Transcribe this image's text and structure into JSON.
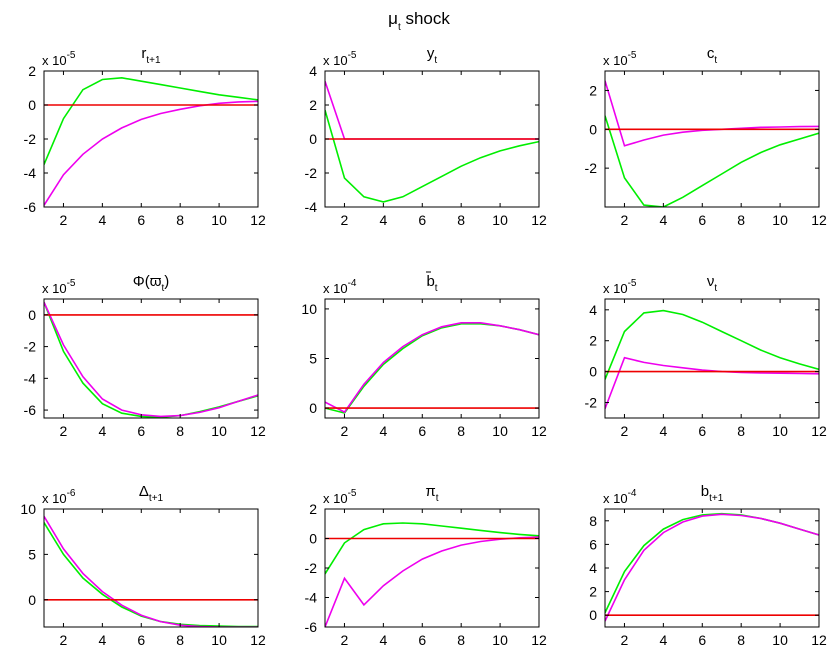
{
  "figure": {
    "title_main": "μ",
    "title_sub": "t",
    "title_rest": " shock"
  },
  "colors": {
    "series1": "#00ee00",
    "series2": "#ee00ee",
    "zero_line": "#ee0000",
    "axes": "#000000"
  },
  "chart_data": [
    {
      "type": "line",
      "title": "r",
      "title_sub": "t+1",
      "exponent_label": "x 10",
      "exponent": "-5",
      "x": [
        1,
        2,
        3,
        4,
        5,
        6,
        7,
        8,
        9,
        10,
        11,
        12
      ],
      "xlim": [
        1,
        12
      ],
      "xticks": [
        2,
        4,
        6,
        8,
        10,
        12
      ],
      "ylim": [
        -6,
        2
      ],
      "yticks": [
        -6,
        -4,
        -2,
        0,
        2
      ],
      "series": [
        {
          "color": "#00ee00",
          "values": [
            -3.5,
            -0.8,
            0.9,
            1.5,
            1.6,
            1.4,
            1.2,
            1.0,
            0.8,
            0.6,
            0.45,
            0.3
          ]
        },
        {
          "color": "#ee00ee",
          "values": [
            -5.9,
            -4.1,
            -2.9,
            -2.0,
            -1.35,
            -0.85,
            -0.5,
            -0.25,
            -0.05,
            0.1,
            0.18,
            0.22
          ]
        },
        {
          "color": "#ee0000",
          "values": [
            0,
            0,
            0,
            0,
            0,
            0,
            0,
            0,
            0,
            0,
            0,
            0
          ]
        }
      ]
    },
    {
      "type": "line",
      "title": "y",
      "title_sub": "t",
      "exponent_label": "x 10",
      "exponent": "-5",
      "x": [
        1,
        2,
        3,
        4,
        5,
        6,
        7,
        8,
        9,
        10,
        11,
        12
      ],
      "xlim": [
        1,
        12
      ],
      "xticks": [
        2,
        4,
        6,
        8,
        10,
        12
      ],
      "ylim": [
        -4,
        4
      ],
      "yticks": [
        -4,
        -2,
        0,
        2,
        4
      ],
      "series": [
        {
          "color": "#00ee00",
          "values": [
            1.7,
            -2.3,
            -3.4,
            -3.7,
            -3.4,
            -2.8,
            -2.2,
            -1.6,
            -1.1,
            -0.7,
            -0.4,
            -0.15
          ]
        },
        {
          "color": "#ee00ee",
          "values": [
            3.4,
            0,
            0,
            0,
            0,
            0,
            0,
            0,
            0,
            0,
            0,
            0
          ]
        },
        {
          "color": "#ee0000",
          "values": [
            0,
            0,
            0,
            0,
            0,
            0,
            0,
            0,
            0,
            0,
            0,
            0
          ]
        }
      ]
    },
    {
      "type": "line",
      "title": "c",
      "title_sub": "t",
      "exponent_label": "x 10",
      "exponent": "-5",
      "x": [
        1,
        2,
        3,
        4,
        5,
        6,
        7,
        8,
        9,
        10,
        11,
        12
      ],
      "xlim": [
        1,
        12
      ],
      "xticks": [
        2,
        4,
        6,
        8,
        10,
        12
      ],
      "ylim": [
        -4,
        3
      ],
      "yticks": [
        -2,
        0,
        2
      ],
      "series": [
        {
          "color": "#00ee00",
          "values": [
            0.7,
            -2.5,
            -3.9,
            -4.0,
            -3.5,
            -2.9,
            -2.3,
            -1.7,
            -1.2,
            -0.8,
            -0.5,
            -0.2
          ]
        },
        {
          "color": "#ee00ee",
          "values": [
            2.5,
            -0.85,
            -0.55,
            -0.3,
            -0.15,
            -0.05,
            0,
            0.05,
            0.1,
            0.12,
            0.14,
            0.15
          ]
        },
        {
          "color": "#ee0000",
          "values": [
            0,
            0,
            0,
            0,
            0,
            0,
            0,
            0,
            0,
            0,
            0,
            0
          ]
        }
      ]
    },
    {
      "type": "line",
      "title": "Φ(ϖ",
      "title_sub": "t",
      "title_after": ")",
      "exponent_label": "x 10",
      "exponent": "-5",
      "x": [
        1,
        2,
        3,
        4,
        5,
        6,
        7,
        8,
        9,
        10,
        11,
        12
      ],
      "xlim": [
        1,
        12
      ],
      "xticks": [
        2,
        4,
        6,
        8,
        10,
        12
      ],
      "ylim": [
        -6.5,
        1
      ],
      "yticks": [
        -6,
        -4,
        -2,
        0
      ],
      "series": [
        {
          "color": "#00ee00",
          "values": [
            0.8,
            -2.3,
            -4.3,
            -5.6,
            -6.2,
            -6.4,
            -6.45,
            -6.35,
            -6.1,
            -5.8,
            -5.45,
            -5.1
          ]
        },
        {
          "color": "#ee00ee",
          "values": [
            0.8,
            -1.9,
            -3.9,
            -5.3,
            -6.0,
            -6.3,
            -6.4,
            -6.35,
            -6.15,
            -5.85,
            -5.45,
            -5.05
          ]
        },
        {
          "color": "#ee0000",
          "values": [
            0,
            0,
            0,
            0,
            0,
            0,
            0,
            0,
            0,
            0,
            0,
            0
          ]
        }
      ]
    },
    {
      "type": "line",
      "title": "b",
      "title_sub": "t",
      "title_overbar": true,
      "exponent_label": "x 10",
      "exponent": "-4",
      "x": [
        1,
        2,
        3,
        4,
        5,
        6,
        7,
        8,
        9,
        10,
        11,
        12
      ],
      "xlim": [
        1,
        12
      ],
      "xticks": [
        2,
        4,
        6,
        8,
        10,
        12
      ],
      "ylim": [
        -1,
        11
      ],
      "yticks": [
        0,
        5,
        10
      ],
      "series": [
        {
          "color": "#00ee00",
          "values": [
            0,
            -0.5,
            2.2,
            4.4,
            6.0,
            7.3,
            8.1,
            8.5,
            8.5,
            8.3,
            7.9,
            7.4
          ]
        },
        {
          "color": "#ee00ee",
          "values": [
            0.6,
            -0.4,
            2.4,
            4.6,
            6.2,
            7.4,
            8.2,
            8.6,
            8.6,
            8.3,
            7.9,
            7.4
          ]
        },
        {
          "color": "#ee0000",
          "values": [
            0,
            0,
            0,
            0,
            0,
            0,
            0,
            0,
            0,
            0,
            0,
            0
          ]
        }
      ]
    },
    {
      "type": "line",
      "title": "ν",
      "title_sub": "t",
      "exponent_label": "x 10",
      "exponent": "-5",
      "x": [
        1,
        2,
        3,
        4,
        5,
        6,
        7,
        8,
        9,
        10,
        11,
        12
      ],
      "xlim": [
        1,
        12
      ],
      "xticks": [
        2,
        4,
        6,
        8,
        10,
        12
      ],
      "ylim": [
        -3,
        4.7
      ],
      "yticks": [
        -2,
        0,
        2,
        4
      ],
      "series": [
        {
          "color": "#00ee00",
          "values": [
            -0.5,
            2.6,
            3.8,
            3.95,
            3.7,
            3.2,
            2.6,
            2.0,
            1.4,
            0.9,
            0.5,
            0.15
          ]
        },
        {
          "color": "#ee00ee",
          "values": [
            -2.4,
            0.9,
            0.6,
            0.4,
            0.25,
            0.1,
            0,
            -0.05,
            -0.08,
            -0.1,
            -0.12,
            -0.14
          ]
        },
        {
          "color": "#ee0000",
          "values": [
            0,
            0,
            0,
            0,
            0,
            0,
            0,
            0,
            0,
            0,
            0,
            0
          ]
        }
      ]
    },
    {
      "type": "line",
      "title": "Δ",
      "title_sub": "t+1",
      "exponent_label": "x 10",
      "exponent": "-6",
      "x": [
        1,
        2,
        3,
        4,
        5,
        6,
        7,
        8,
        9,
        10,
        11,
        12
      ],
      "xlim": [
        1,
        12
      ],
      "xticks": [
        2,
        4,
        6,
        8,
        10,
        12
      ],
      "ylim": [
        -3,
        10
      ],
      "yticks": [
        0,
        5,
        10
      ],
      "series": [
        {
          "color": "#00ee00",
          "values": [
            8.5,
            5.0,
            2.4,
            0.6,
            -0.8,
            -1.8,
            -2.4,
            -2.7,
            -2.85,
            -2.9,
            -2.95,
            -2.95
          ]
        },
        {
          "color": "#ee00ee",
          "values": [
            9.2,
            5.6,
            2.9,
            0.9,
            -0.6,
            -1.7,
            -2.4,
            -2.8,
            -2.95,
            -3.0,
            -3.0,
            -3.0
          ]
        },
        {
          "color": "#ee0000",
          "values": [
            0,
            0,
            0,
            0,
            0,
            0,
            0,
            0,
            0,
            0,
            0,
            0
          ]
        }
      ]
    },
    {
      "type": "line",
      "title": "π",
      "title_sub": "t",
      "exponent_label": "x 10",
      "exponent": "-5",
      "x": [
        1,
        2,
        3,
        4,
        5,
        6,
        7,
        8,
        9,
        10,
        11,
        12
      ],
      "xlim": [
        1,
        12
      ],
      "xticks": [
        2,
        4,
        6,
        8,
        10,
        12
      ],
      "ylim": [
        -6,
        2
      ],
      "yticks": [
        -6,
        -4,
        -2,
        0,
        2
      ],
      "series": [
        {
          "color": "#00ee00",
          "values": [
            -2.4,
            -0.3,
            0.6,
            1.0,
            1.05,
            1.0,
            0.85,
            0.7,
            0.55,
            0.4,
            0.28,
            0.18
          ]
        },
        {
          "color": "#ee00ee",
          "values": [
            -6.0,
            -2.7,
            -4.5,
            -3.2,
            -2.2,
            -1.4,
            -0.85,
            -0.45,
            -0.2,
            -0.05,
            0.05,
            0.1
          ]
        },
        {
          "color": "#ee0000",
          "values": [
            0,
            0,
            0,
            0,
            0,
            0,
            0,
            0,
            0,
            0,
            0,
            0
          ]
        }
      ]
    },
    {
      "type": "line",
      "title": "b",
      "title_sub": "t+1",
      "exponent_label": "x 10",
      "exponent": "-4",
      "x": [
        1,
        2,
        3,
        4,
        5,
        6,
        7,
        8,
        9,
        10,
        11,
        12
      ],
      "xlim": [
        1,
        12
      ],
      "xticks": [
        2,
        4,
        6,
        8,
        10,
        12
      ],
      "ylim": [
        -1,
        9
      ],
      "yticks": [
        0,
        2,
        4,
        6,
        8
      ],
      "series": [
        {
          "color": "#00ee00",
          "values": [
            0.2,
            3.7,
            5.9,
            7.3,
            8.1,
            8.5,
            8.6,
            8.5,
            8.2,
            7.8,
            7.3,
            6.8
          ]
        },
        {
          "color": "#ee00ee",
          "values": [
            -0.5,
            3.0,
            5.5,
            7.0,
            7.9,
            8.4,
            8.55,
            8.45,
            8.2,
            7.8,
            7.3,
            6.8
          ]
        },
        {
          "color": "#ee0000",
          "values": [
            0,
            0,
            0,
            0,
            0,
            0,
            0,
            0,
            0,
            0,
            0,
            0
          ]
        }
      ]
    }
  ]
}
